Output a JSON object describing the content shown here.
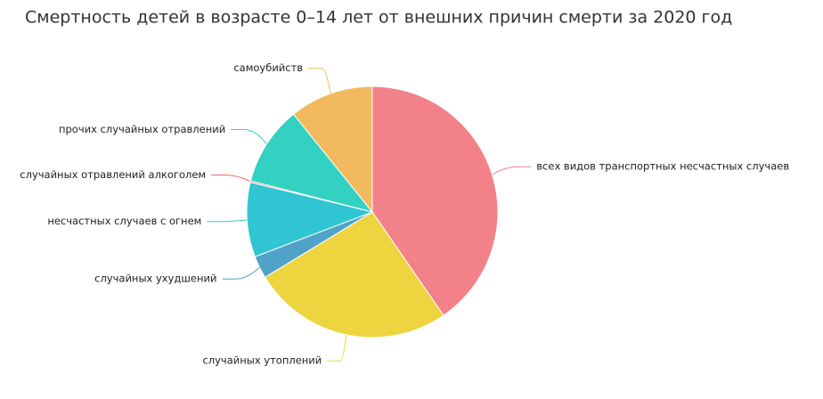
{
  "chart_data": {
    "type": "pie",
    "title": "Смертность детей в возрасте 0–14 лет от внешних причин смерти за 2020 год",
    "categories": [
      "всех видов транспортных несчастных случаев",
      "случайных утоплений",
      "случайных ухудшений",
      "несчастных случаев с огнем",
      "случайных отравлений алкоголем",
      "прочих случайных отравлений",
      "самоубийств"
    ],
    "values": [
      40.4,
      25.9,
      2.9,
      9.6,
      0.2,
      10.2,
      10.8
    ],
    "colors": [
      "#f28189",
      "#eed53f",
      "#4fa3c9",
      "#30c5d2",
      "#ec6a6a",
      "#32d1c2",
      "#f2b95e"
    ]
  }
}
